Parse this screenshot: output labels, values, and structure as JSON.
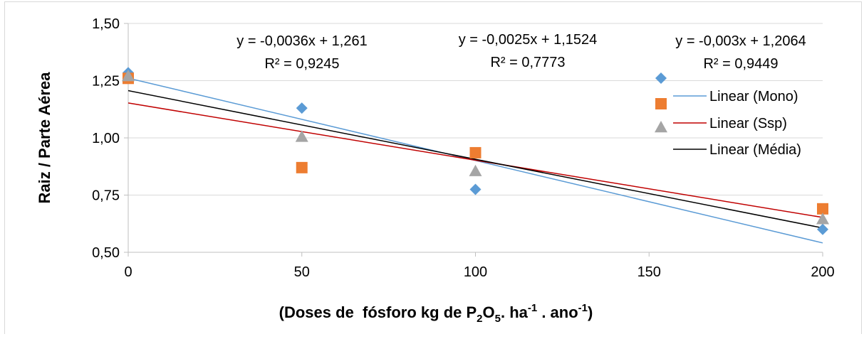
{
  "chart_data": {
    "type": "scatter",
    "ylabel": "Raiz / Parte Aérea",
    "xlabel": {
      "prefix": "(Doses de  fósforo kg de P",
      "sub1": "2",
      "mid1": "O",
      "sub2": "5",
      "mid2": ". ha",
      "sup1": "-1",
      "mid3": " . ano",
      "sup2": "-1",
      "suffix": ")"
    },
    "x_ticks": [
      0,
      50,
      100,
      150,
      200
    ],
    "x_tick_labels": [
      "0",
      "50",
      "100",
      "150",
      "200"
    ],
    "y_ticks": [
      0.5,
      0.75,
      1.0,
      1.25,
      1.5
    ],
    "y_tick_labels": [
      "0,50",
      "0,75",
      "1,00",
      "1,25",
      "1,50"
    ],
    "xlim": [
      0,
      200
    ],
    "ylim": [
      0.5,
      1.5
    ],
    "grid": "horizontal",
    "series": [
      {
        "marker": "diamond",
        "color": "#5b9bd5",
        "x": [
          0,
          50,
          100,
          200
        ],
        "y": [
          1.285,
          1.13,
          0.775,
          0.6
        ],
        "trend": {
          "slope": -0.0036,
          "intercept": 1.261,
          "color": "#5b9bd5",
          "legend": "Linear (Mono)"
        }
      },
      {
        "marker": "square",
        "color": "#ed7d31",
        "x": [
          0,
          50,
          100,
          200
        ],
        "y": [
          1.26,
          0.87,
          0.935,
          0.69
        ],
        "trend": {
          "slope": -0.0025,
          "intercept": 1.1524,
          "color": "#c00000",
          "legend": "Linear (Ssp)"
        }
      },
      {
        "marker": "triangle",
        "color": "#a5a5a5",
        "x": [
          0,
          50,
          100,
          200
        ],
        "y": [
          1.27,
          1.005,
          0.855,
          0.645
        ],
        "trend": {
          "slope": -0.003,
          "intercept": 1.2064,
          "color": "#000000",
          "legend": "Linear (Média)"
        }
      }
    ],
    "equations": [
      {
        "eq": "y = -0,0036x + 1,261",
        "r2": "R² = 0,9245"
      },
      {
        "eq": "y = -0,0025x + 1,1524",
        "r2": "R² = 0,7773"
      },
      {
        "eq": "y = -0,003x + 1,2064",
        "r2": "R² = 0,9449"
      }
    ],
    "legend_position": "right"
  }
}
